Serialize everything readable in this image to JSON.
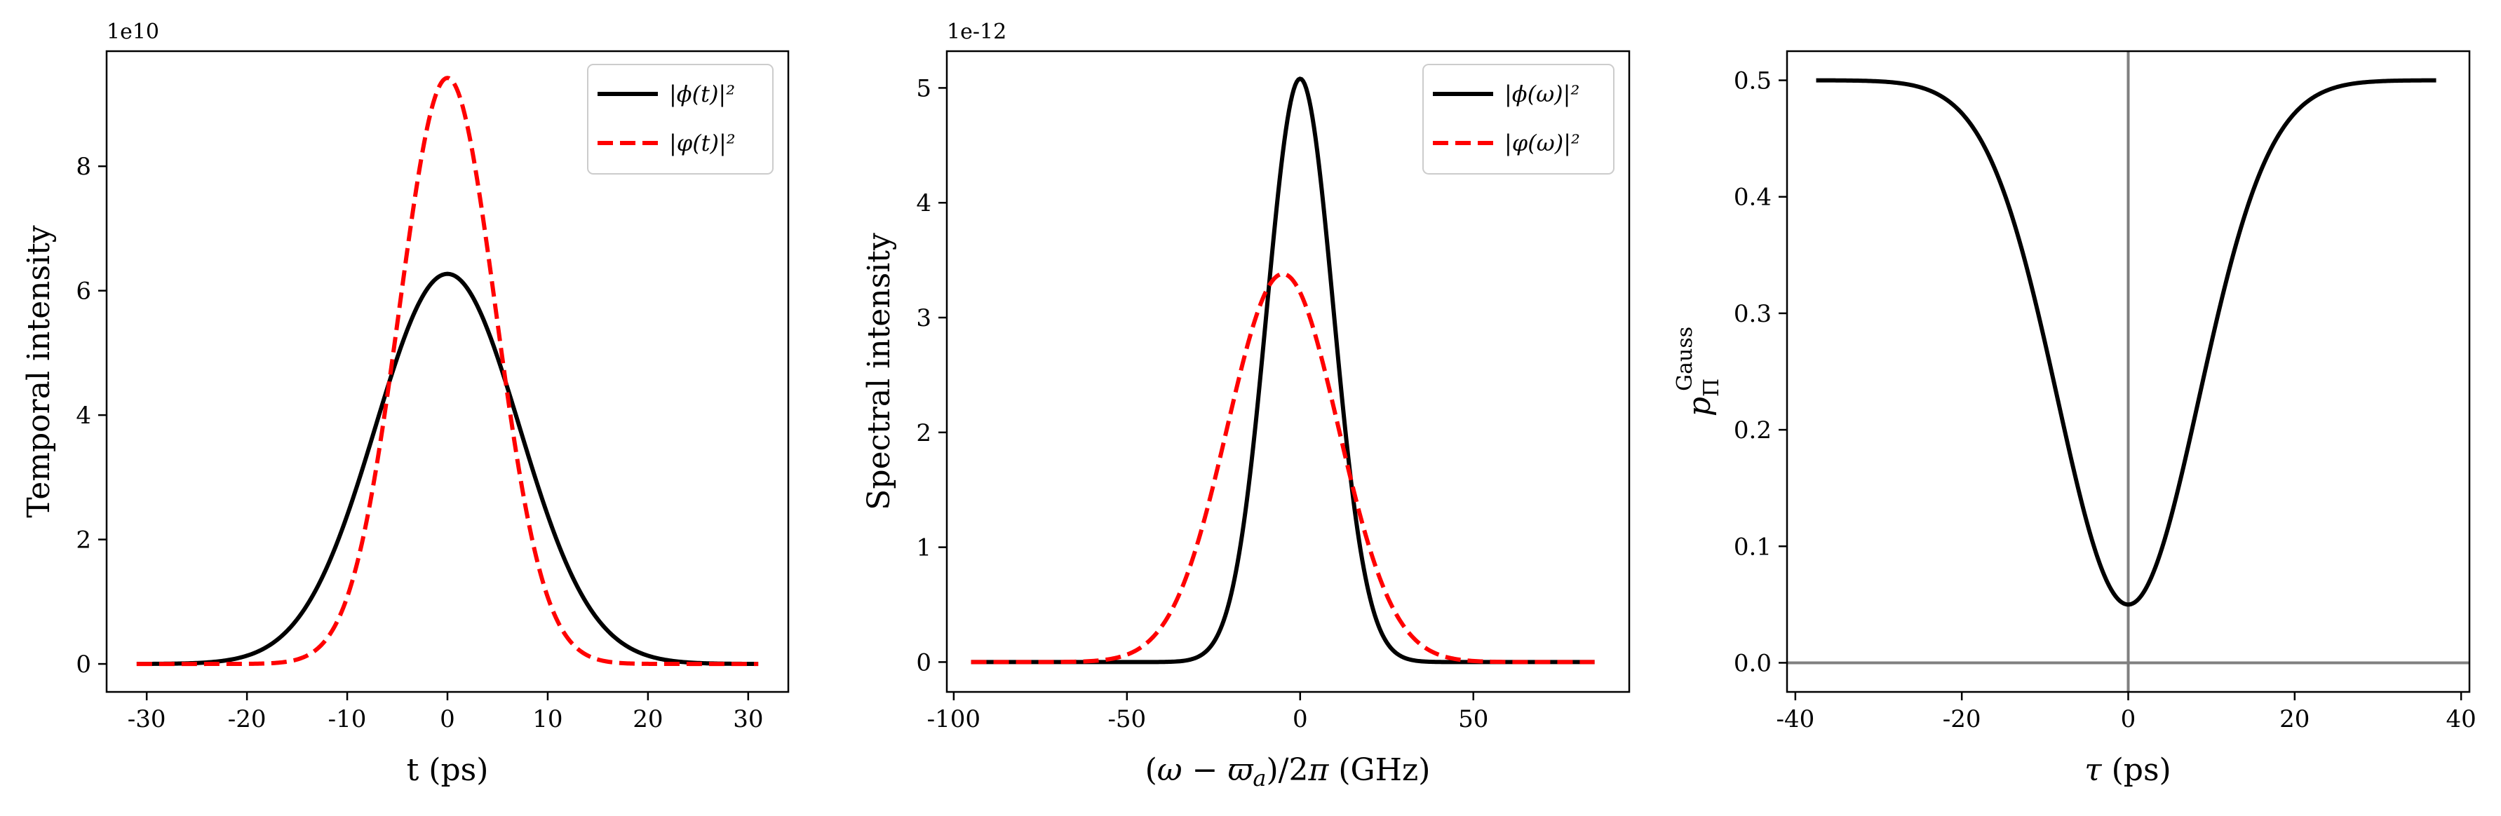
{
  "chart_data": [
    {
      "type": "line",
      "xlabel": "t (ps)",
      "ylabel": "Temporal intensity",
      "offset_text": "1e10",
      "xlim": [
        -34,
        34
      ],
      "ylim": [
        -0.45,
        9.85
      ],
      "xticks": [
        -30,
        -20,
        -10,
        0,
        10,
        20,
        30
      ],
      "xtick_labels": [
        "-30",
        "-20",
        "-10",
        "0",
        "10",
        "20",
        "30"
      ],
      "yticks": [
        0,
        2,
        4,
        6,
        8
      ],
      "ytick_labels": [
        "0",
        "2",
        "4",
        "6",
        "8"
      ],
      "legend": "top-right",
      "series": [
        {
          "name": "|ϕ(t)|²",
          "color": "#000000",
          "dash": "solid",
          "gauss": {
            "amp": 6.27,
            "mu": 0,
            "sigma": 7.2
          },
          "xrange": [
            -31,
            31
          ]
        },
        {
          "name": "|φ(t)|²",
          "color": "#ff0000",
          "dash": "dashed",
          "gauss": {
            "amp": 9.42,
            "mu": 0,
            "sigma": 4.8
          },
          "xrange": [
            -31,
            31
          ]
        }
      ]
    },
    {
      "type": "line",
      "xlabel": "(ω − ϖa)/2π (GHz)",
      "ylabel": "Spectral intensity",
      "offset_text": "1e-12",
      "xlim": [
        -102,
        95
      ],
      "ylim": [
        -0.26,
        5.32
      ],
      "xticks": [
        -100,
        -50,
        0,
        50
      ],
      "xtick_labels": [
        "-100",
        "-50",
        "0",
        "50"
      ],
      "yticks": [
        0,
        1,
        2,
        3,
        4,
        5
      ],
      "ytick_labels": [
        "0",
        "1",
        "2",
        "3",
        "4",
        "5"
      ],
      "legend": "top-right",
      "series": [
        {
          "name": "|ϕ(ω)|²",
          "color": "#000000",
          "dash": "solid",
          "gauss": {
            "amp": 5.08,
            "mu": 0,
            "sigma": 9.6
          },
          "xrange": [
            -95,
            85
          ]
        },
        {
          "name": "|φ(ω)|²",
          "color": "#ff0000",
          "dash": "dashed",
          "gauss": {
            "amp": 3.38,
            "mu": -5,
            "sigma": 16
          },
          "xrange": [
            -95,
            85
          ]
        }
      ]
    },
    {
      "type": "line",
      "xlabel": "τ (ps)",
      "ylabel": "pΠGauss",
      "xlim": [
        -41,
        41
      ],
      "ylim": [
        -0.025,
        0.525
      ],
      "xticks": [
        -40,
        -20,
        0,
        20,
        40
      ],
      "xtick_labels": [
        "-40",
        "-20",
        "0",
        "20",
        "40"
      ],
      "yticks": [
        0.0,
        0.1,
        0.2,
        0.3,
        0.4,
        0.5
      ],
      "ytick_labels": [
        "0.0",
        "0.1",
        "0.2",
        "0.3",
        "0.4",
        "0.5"
      ],
      "reference_lines": {
        "x": 0,
        "y": 0,
        "color": "#808080"
      },
      "series": [
        {
          "name": "",
          "color": "#000000",
          "dash": "solid",
          "dip": {
            "base": 0.5,
            "depth": 0.45,
            "sigma": 8.5
          },
          "xrange": [
            -37.5,
            37
          ]
        }
      ]
    }
  ]
}
